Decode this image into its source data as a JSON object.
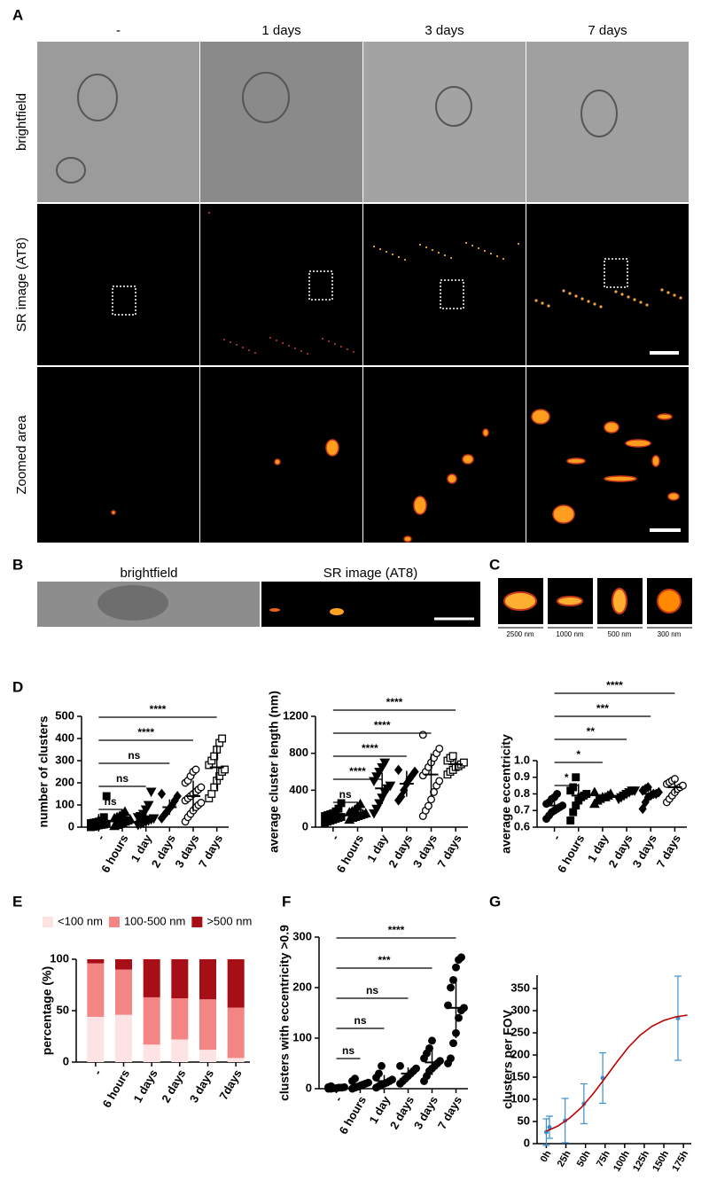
{
  "panel_a": {
    "label": "A",
    "columns": [
      "-",
      "1 days",
      "3 days",
      "7 days"
    ],
    "rows": [
      "brightfield",
      "SR image (AT8)",
      "Zoomed area"
    ]
  },
  "panel_b": {
    "label": "B",
    "captions": [
      "brightfield",
      "SR image (AT8)"
    ]
  },
  "panel_c": {
    "label": "C",
    "scales": [
      "2500 nm",
      "1000 nm",
      "500 nm",
      "300 nm"
    ]
  },
  "chart_data": [
    {
      "type": "dot_plot",
      "panel_label": "D",
      "y_label": "number of clusters",
      "categories": [
        "-",
        "6 hours",
        "1 day",
        "2 days",
        "3 days",
        "7 days"
      ],
      "markers": [
        "square",
        "triangle",
        "triangle-down",
        "diamond",
        "circle-open",
        "square-open"
      ],
      "points": [
        [
          0,
          2,
          5,
          8,
          10,
          12,
          15,
          18,
          20,
          22,
          25,
          30,
          45,
          140
        ],
        [
          5,
          10,
          15,
          20,
          25,
          30,
          35,
          40,
          45,
          50,
          60,
          70
        ],
        [
          10,
          15,
          20,
          25,
          30,
          35,
          40,
          45,
          50,
          60,
          80,
          100,
          160
        ],
        [
          40,
          55,
          70,
          85,
          100,
          120,
          140,
          150
        ],
        [
          25,
          45,
          60,
          75,
          90,
          100,
          110,
          120,
          130,
          140,
          150,
          160,
          170,
          180,
          200,
          210,
          230,
          250,
          260
        ],
        [
          130,
          150,
          180,
          210,
          230,
          250,
          260,
          280,
          300,
          320,
          350,
          380,
          400
        ]
      ],
      "means": [
        24,
        35,
        48,
        90,
        140,
        270
      ],
      "sds": [
        35,
        20,
        45,
        35,
        70,
        100
      ],
      "comparisons": [
        {
          "categories": [
            0,
            1
          ],
          "label": "ns"
        },
        {
          "categories": [
            0,
            2
          ],
          "label": "ns"
        },
        {
          "categories": [
            0,
            3
          ],
          "label": "ns"
        },
        {
          "categories": [
            0,
            4
          ],
          "label": "****"
        },
        {
          "categories": [
            0,
            5
          ],
          "label": "****"
        }
      ],
      "ylim": [
        0,
        500
      ],
      "yticks": [
        0,
        100,
        200,
        300,
        400,
        500
      ]
    },
    {
      "type": "dot_plot",
      "y_label": "average cluster length (nm)",
      "categories": [
        "-",
        "6 hours",
        "1 day",
        "2 days",
        "3 days",
        "7 days"
      ],
      "markers": [
        "square",
        "triangle",
        "triangle-down",
        "diamond",
        "circle-open",
        "square-open"
      ],
      "points": [
        [
          40,
          60,
          70,
          80,
          90,
          100,
          110,
          120,
          130,
          140,
          150,
          170,
          200,
          260
        ],
        [
          80,
          100,
          110,
          120,
          130,
          140,
          150,
          160,
          170,
          190,
          220,
          250
        ],
        [
          150,
          200,
          260,
          320,
          380,
          420,
          450,
          500,
          550,
          600,
          650,
          700
        ],
        [
          290,
          330,
          400,
          470,
          520,
          560,
          600,
          620
        ],
        [
          120,
          180,
          230,
          300,
          380,
          450,
          500,
          560,
          600,
          650,
          700,
          750,
          800,
          850,
          1000
        ],
        [
          570,
          600,
          620,
          650,
          660,
          680,
          700,
          720,
          750,
          770
        ]
      ],
      "means": [
        120,
        150,
        420,
        470,
        570,
        680
      ],
      "sds": [
        50,
        45,
        170,
        140,
        230,
        70
      ],
      "comparisons": [
        {
          "categories": [
            0,
            1
          ],
          "label": "ns"
        },
        {
          "categories": [
            0,
            2
          ],
          "label": "****"
        },
        {
          "categories": [
            0,
            3
          ],
          "label": "****"
        },
        {
          "categories": [
            0,
            4
          ],
          "label": "****"
        },
        {
          "categories": [
            0,
            5
          ],
          "label": "****"
        }
      ],
      "ylim": [
        0,
        1200
      ],
      "yticks": [
        0,
        400,
        800,
        1200
      ]
    },
    {
      "type": "dot_plot",
      "y_label": "average eccentricity",
      "categories": [
        "-",
        "6 hours",
        "1 day",
        "2 days",
        "3 days",
        "7 days"
      ],
      "markers": [
        "circle",
        "square",
        "triangle",
        "triangle-down",
        "diamond",
        "circle-open"
      ],
      "points": [
        [
          0.65,
          0.67,
          0.69,
          0.7,
          0.71,
          0.72,
          0.73,
          0.74,
          0.75,
          0.77,
          0.78,
          0.8
        ],
        [
          0.64,
          0.69,
          0.73,
          0.76,
          0.78,
          0.79,
          0.8,
          0.82,
          0.84,
          0.9
        ],
        [
          0.74,
          0.76,
          0.77,
          0.78,
          0.78,
          0.79,
          0.8,
          0.81
        ],
        [
          0.77,
          0.78,
          0.79,
          0.8,
          0.81,
          0.82,
          0.82
        ],
        [
          0.71,
          0.75,
          0.78,
          0.79,
          0.8,
          0.8,
          0.81,
          0.82,
          0.83,
          0.84
        ],
        [
          0.75,
          0.77,
          0.79,
          0.81,
          0.83,
          0.84,
          0.85,
          0.86,
          0.87,
          0.88,
          0.89
        ]
      ],
      "means": [
        0.73,
        0.79,
        0.78,
        0.8,
        0.8,
        0.84
      ],
      "sds": [
        0.04,
        0.07,
        0.02,
        0.02,
        0.03,
        0.04
      ],
      "comparisons": [
        {
          "categories": [
            0,
            1
          ],
          "label": "*"
        },
        {
          "categories": [
            0,
            2
          ],
          "label": "*"
        },
        {
          "categories": [
            0,
            3
          ],
          "label": "**"
        },
        {
          "categories": [
            0,
            4
          ],
          "label": "***"
        },
        {
          "categories": [
            0,
            5
          ],
          "label": "****"
        }
      ],
      "ylim": [
        0.6,
        1
      ],
      "yticks": [
        0.6,
        0.7,
        0.8,
        0.9,
        {
          "value": 1,
          "label": "1.0"
        }
      ]
    },
    {
      "type": "stacked_bar",
      "panel_label": "E",
      "y_label": "percentage (%)",
      "legend": "top",
      "categories": [
        "-",
        "6 hours",
        "1 days",
        "2 days",
        "3 days",
        "7days"
      ],
      "series": [
        {
          "name": "<100 nm",
          "color": "#fde3e3",
          "values": [
            44,
            46,
            17,
            22,
            12,
            4
          ]
        },
        {
          "name": "100-500 nm",
          "color": "#f48585",
          "values": [
            52,
            44,
            46,
            40,
            49,
            49
          ]
        },
        {
          "name": ">500 nm",
          "color": "#a50f15",
          "values": [
            4,
            10,
            37,
            38,
            39,
            47
          ]
        }
      ],
      "ylim": [
        0,
        100
      ],
      "yticks": [
        0,
        50,
        100
      ]
    },
    {
      "type": "dot_plot",
      "panel_label": "F",
      "y_label": "clusters with eccentricity >0.9",
      "categories": [
        "-",
        "6 hours",
        "1 day",
        "2 days",
        "3 days",
        "7 days"
      ],
      "markers": [
        "circle",
        "circle",
        "circle",
        "circle",
        "circle",
        "circle"
      ],
      "points": [
        [
          0,
          0,
          1,
          1,
          2,
          2,
          3,
          3,
          5
        ],
        [
          0,
          2,
          4,
          6,
          8,
          10,
          12,
          15,
          20
        ],
        [
          2,
          5,
          8,
          10,
          12,
          15,
          18,
          22,
          30,
          45
        ],
        [
          10,
          15,
          20,
          25,
          30,
          35,
          40,
          45
        ],
        [
          15,
          25,
          35,
          40,
          45,
          50,
          55,
          60,
          70,
          80,
          95
        ],
        [
          50,
          60,
          90,
          110,
          140,
          155,
          160,
          165,
          200,
          215,
          240,
          255,
          260
        ]
      ],
      "means": [
        2,
        8,
        15,
        30,
        52,
        160
      ],
      "sds": [
        2,
        6,
        12,
        12,
        25,
        60
      ],
      "comparisons": [
        {
          "categories": [
            0,
            1
          ],
          "label": "ns"
        },
        {
          "categories": [
            0,
            2
          ],
          "label": "ns"
        },
        {
          "categories": [
            0,
            3
          ],
          "label": "ns"
        },
        {
          "categories": [
            0,
            4
          ],
          "label": "***"
        },
        {
          "categories": [
            0,
            5
          ],
          "label": "****"
        }
      ],
      "ylim": [
        0,
        300
      ],
      "yticks": [
        0,
        100,
        200,
        300
      ]
    },
    {
      "type": "line",
      "panel_label": "G",
      "y_label": "clusters per FOV",
      "series": [
        {
          "color": "#3a8fd0",
          "x": [
            0,
            4,
            24,
            48,
            72,
            168
          ],
          "values": [
            26,
            37,
            52,
            90,
            148,
            283
          ],
          "errors": [
            30,
            25,
            50,
            45,
            57,
            95
          ]
        },
        {
          "color": "#c00000",
          "x": [
            0,
            15,
            30,
            45,
            60,
            75,
            90,
            105,
            120,
            135,
            150,
            165,
            180
          ],
          "values": [
            28,
            40,
            58,
            82,
            113,
            148,
            184,
            218,
            245,
            265,
            278,
            286,
            290
          ]
        }
      ],
      "xlim": [
        -5,
        185
      ],
      "xticks": [
        {
          "value": 0,
          "label": "0h"
        },
        {
          "value": 25,
          "label": "25h"
        },
        {
          "value": 50,
          "label": "50h"
        },
        {
          "value": 75,
          "label": "75h"
        },
        {
          "value": 100,
          "label": "100h"
        },
        {
          "value": 125,
          "label": "125h"
        },
        {
          "value": 150,
          "label": "150h"
        },
        {
          "value": 175,
          "label": "175h"
        }
      ],
      "ylim": [
        0,
        380
      ],
      "yticks": [
        0,
        50,
        100,
        150,
        200,
        250,
        300,
        350
      ]
    }
  ]
}
